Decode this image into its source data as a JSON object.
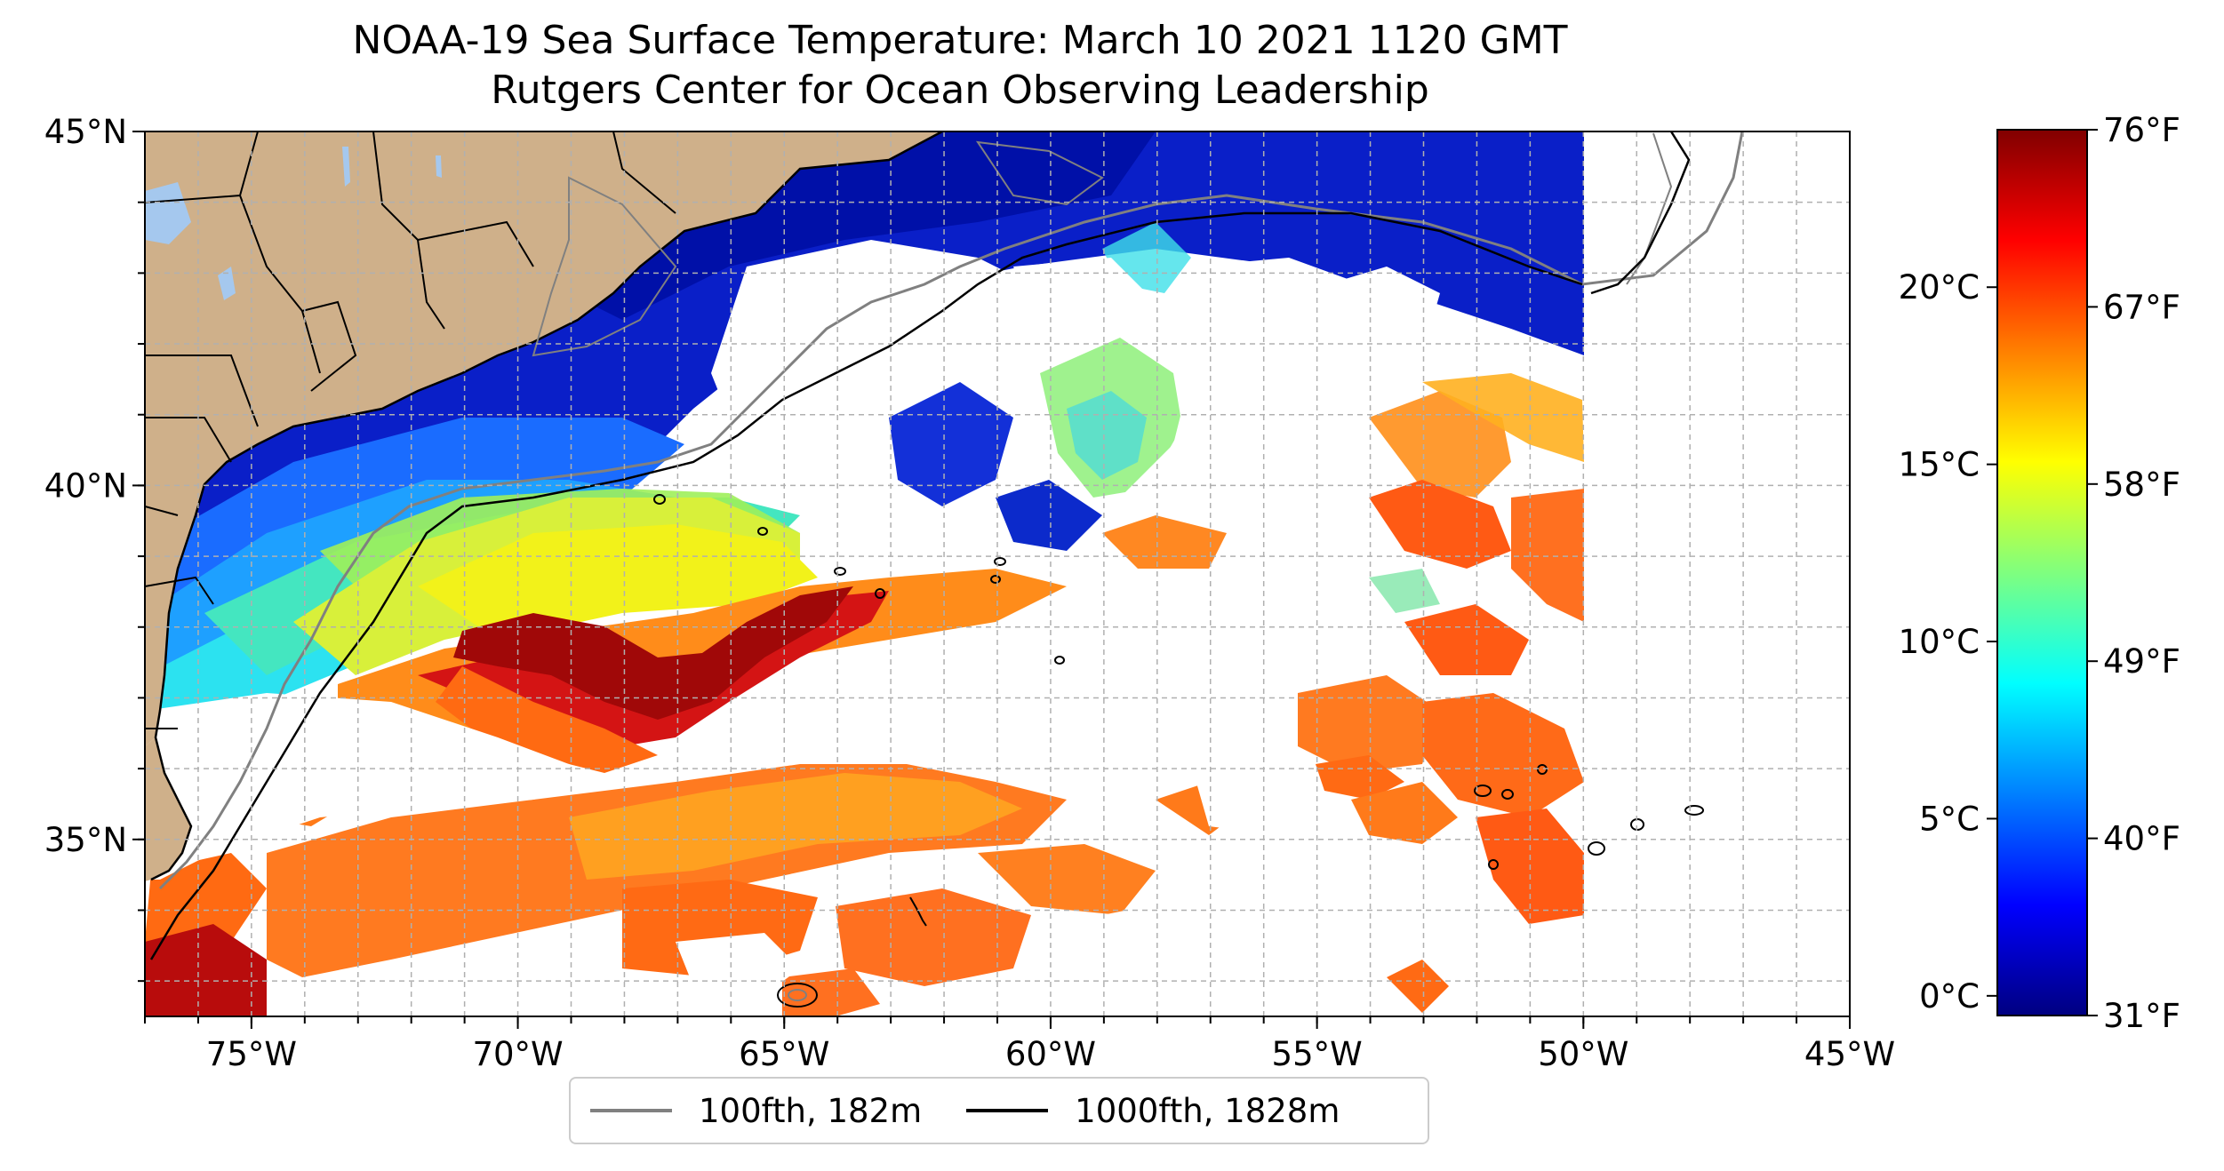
{
  "title": {
    "line1": "NOAA-19 Sea Surface Temperature: March 10 2021 1120 GMT",
    "line2": "Rutgers Center for Ocean Observing Leadership"
  },
  "map": {
    "lon_range": [
      -77,
      -45
    ],
    "lat_range": [
      32.5,
      45
    ],
    "lon_ticks": [
      {
        "value": -75,
        "label": "75°W"
      },
      {
        "value": -70,
        "label": "70°W"
      },
      {
        "value": -65,
        "label": "65°W"
      },
      {
        "value": -60,
        "label": "60°W"
      },
      {
        "value": -55,
        "label": "55°W"
      },
      {
        "value": -50,
        "label": "50°W"
      },
      {
        "value": -45,
        "label": "45°W"
      }
    ],
    "lat_ticks": [
      {
        "value": 45,
        "label": "45°N"
      },
      {
        "value": 40,
        "label": "40°N"
      },
      {
        "value": 35,
        "label": "35°N"
      }
    ],
    "gridlines": "dashed, 1° spacing",
    "colors": {
      "land": "#cfb08a",
      "lakes": "#a5c8ee",
      "no_data": "#ffffff",
      "isobath_100": "#808080",
      "isobath_1000": "#000000"
    }
  },
  "colorbar": {
    "colormap": "jet",
    "celsius_ticks": [
      {
        "value": 0,
        "label": "0°C"
      },
      {
        "value": 5,
        "label": "5°C"
      },
      {
        "value": 10,
        "label": "10°C"
      },
      {
        "value": 15,
        "label": "15°C"
      },
      {
        "value": 20,
        "label": "20°C"
      }
    ],
    "fahrenheit_ticks": [
      {
        "value": 31,
        "label": "31°F"
      },
      {
        "value": 40,
        "label": "40°F"
      },
      {
        "value": 49,
        "label": "49°F"
      },
      {
        "value": 58,
        "label": "58°F"
      },
      {
        "value": 67,
        "label": "67°F"
      },
      {
        "value": 76,
        "label": "76°F"
      }
    ],
    "range_f": [
      31,
      76
    ]
  },
  "legend": {
    "items": [
      {
        "label": "100fth, 182m",
        "color": "#808080"
      },
      {
        "label": "1000fth, 1828m",
        "color": "#000000"
      }
    ]
  }
}
